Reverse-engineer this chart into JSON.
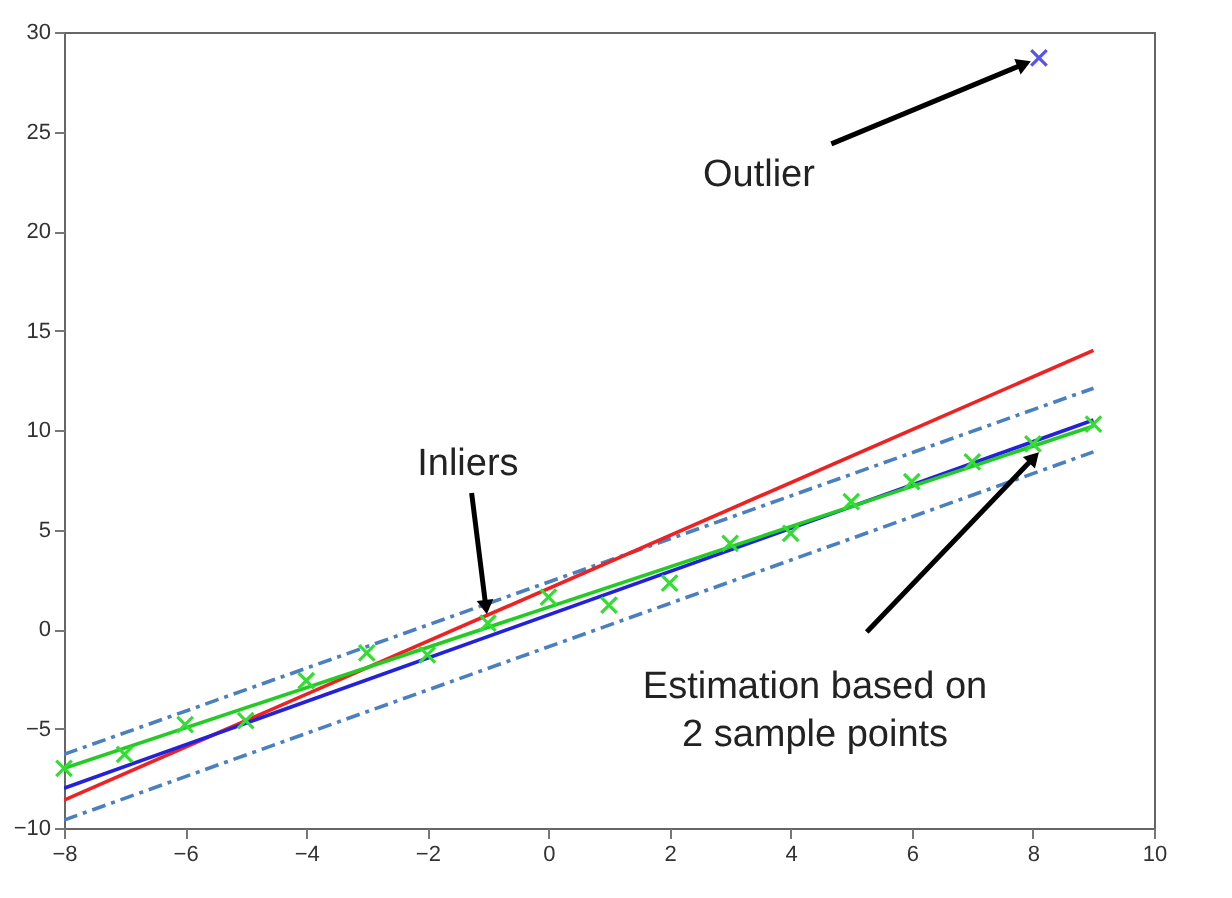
{
  "chart_data": {
    "type": "scatter",
    "xlim": [
      -8,
      10
    ],
    "xticks": [
      -8,
      -6,
      -4,
      -2,
      0,
      2,
      4,
      6,
      8,
      10
    ],
    "ylim": [
      -10,
      30
    ],
    "yticks": [
      -10,
      -5,
      0,
      5,
      10,
      15,
      20,
      25,
      30
    ],
    "grid": false,
    "marker": "cross",
    "series": [
      {
        "type": "line",
        "marker": "none",
        "color": "#4a7fc0",
        "line_style": "dashed",
        "x": [
          -8,
          9
        ],
        "values": [
          -6.3,
          12.1
        ]
      },
      {
        "type": "line",
        "marker": "none",
        "color": "#4a7fc0",
        "line_style": "dashed",
        "x": [
          -8,
          9
        ],
        "values": [
          -9.6,
          8.9
        ]
      },
      {
        "type": "line",
        "marker": "none",
        "color": "#ee2222",
        "x": [
          -8,
          9
        ],
        "values": [
          -8.6,
          14
        ]
      },
      {
        "type": "line",
        "marker": "none",
        "color": "#2222dd",
        "x": [
          -8,
          9
        ],
        "values": [
          -8,
          10.5
        ]
      },
      {
        "type": "line",
        "marker": "none",
        "color": "#22cc22",
        "x": [
          -8,
          9
        ],
        "values": [
          -7,
          10.2
        ]
      },
      {
        "color": "#33dd33",
        "x": [
          -8,
          -7,
          -6,
          -5,
          -4,
          -3,
          -2,
          -1,
          0,
          1,
          2,
          3,
          4,
          5,
          6,
          7,
          8,
          9
        ],
        "values": [
          -7,
          -6.3,
          -4.8,
          -4.6,
          -2.6,
          -1.2,
          -1.3,
          0.3,
          1.6,
          1.2,
          2.3,
          4.3,
          4.8,
          6.4,
          7.4,
          8.4,
          9.3,
          10.3
        ]
      },
      {
        "color": "#5555ee",
        "x": [
          8.1
        ],
        "values": [
          28.7
        ]
      }
    ],
    "annotations": [
      {
        "text": "Outlier",
        "x": 8.1,
        "y": 28.7
      },
      {
        "text": "Inliers",
        "x": -1,
        "y": 0.3
      },
      {
        "text": "Estimation based on\n2 sample points",
        "x": 8.2,
        "y": 9.2
      }
    ]
  }
}
